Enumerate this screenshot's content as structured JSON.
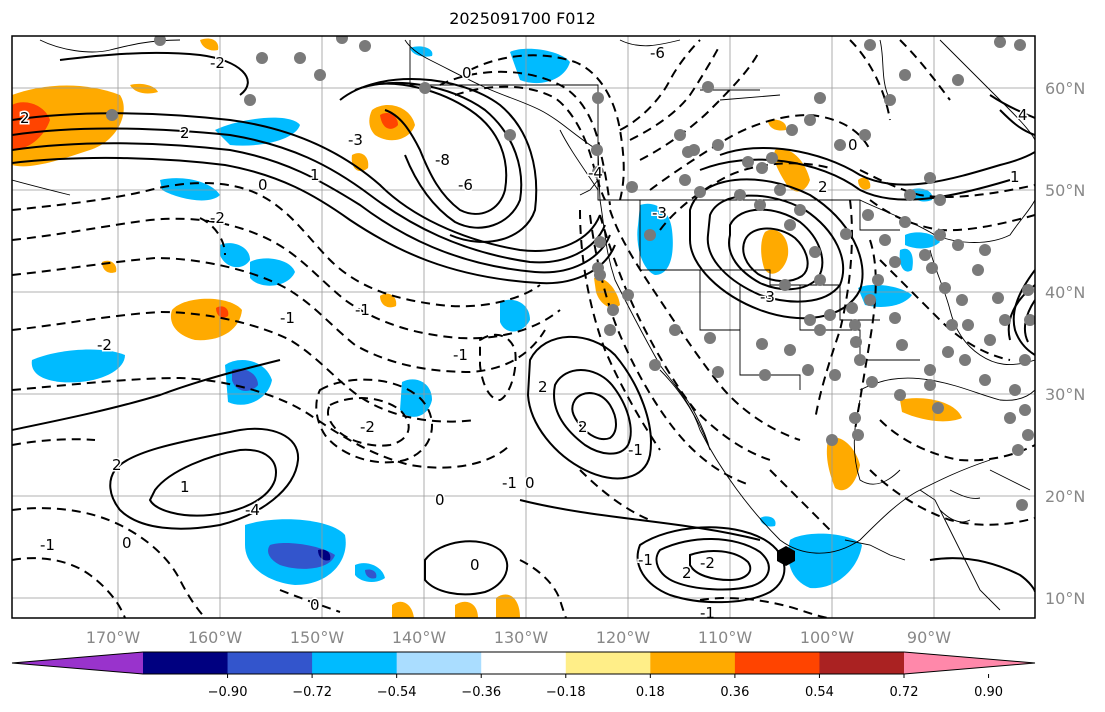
{
  "title": "2025091700 F012",
  "map": {
    "lat_labels": [
      "60°N",
      "50°N",
      "40°N",
      "30°N",
      "20°N",
      "10°N"
    ],
    "lon_labels": [
      "170°W",
      "160°W",
      "150°W",
      "140°W",
      "130°W",
      "120°W",
      "110°W",
      "100°W",
      "90°W"
    ],
    "contour_labels": [
      "2",
      "2",
      "2",
      "1",
      "0",
      "-2",
      "-3",
      "-8",
      "-6",
      "-1",
      "0",
      "-1",
      "-1",
      "-2",
      "-1",
      "-2",
      "1",
      "-4",
      "0",
      "0",
      "-1",
      "0",
      "2",
      "2",
      "-1",
      "-1",
      "0",
      "-1",
      "2",
      "-2",
      "-3",
      "2",
      "0",
      "-3",
      "-6",
      "-4",
      "0",
      "4",
      "1",
      "-2"
    ]
  },
  "colorbar": {
    "colors": [
      "#9933cc",
      "#000080",
      "#3355cc",
      "#00bbff",
      "#aaddff",
      "#ffffff",
      "#ffee88",
      "#ffaa00",
      "#ff4400",
      "#aa2222",
      "#ff88aa"
    ],
    "tick_labels": [
      "−0.90",
      "−0.72",
      "−0.54",
      "−0.36",
      "−0.18",
      "0.18",
      "0.36",
      "0.54",
      "0.72",
      "0.90"
    ]
  }
}
